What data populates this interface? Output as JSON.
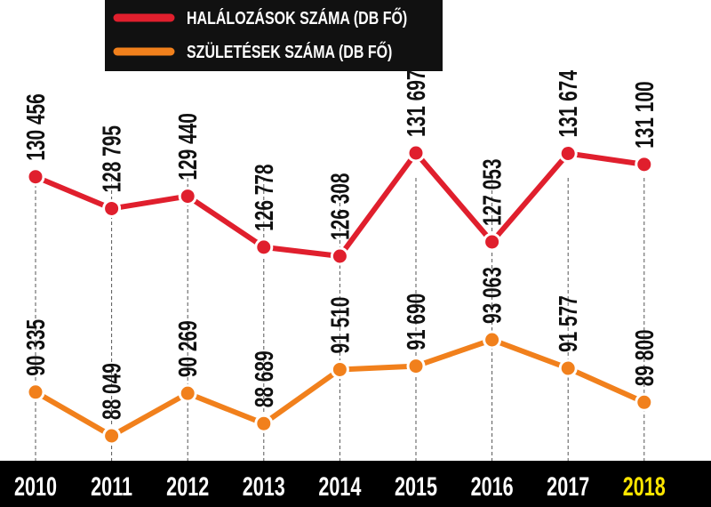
{
  "chart_data": {
    "type": "line",
    "categories": [
      "2010",
      "2011",
      "2012",
      "2013",
      "2014",
      "2015",
      "2016",
      "2017",
      "2018"
    ],
    "series": [
      {
        "name": "HALÁLOZÁSOK SZÁMA (DB FŐ)",
        "color": "#e01f2d",
        "values": [
          130456,
          128795,
          129440,
          126778,
          126308,
          131697,
          127053,
          131674,
          131100
        ],
        "value_labels": [
          "130 456",
          "128 795",
          "129 440",
          "126 778",
          "126 308",
          "131 697",
          "127 053",
          "131 674",
          "131 100"
        ]
      },
      {
        "name": "SZÜLETÉSEK SZÁMA (DB FŐ)",
        "color": "#f1801c",
        "values": [
          90335,
          88049,
          90269,
          88689,
          91510,
          91690,
          93063,
          91577,
          89800
        ],
        "value_labels": [
          "90 335",
          "88 049",
          "90 269",
          "88 689",
          "91 510",
          "91 690",
          "93 063",
          "91 577",
          "89 800"
        ]
      }
    ]
  }
}
